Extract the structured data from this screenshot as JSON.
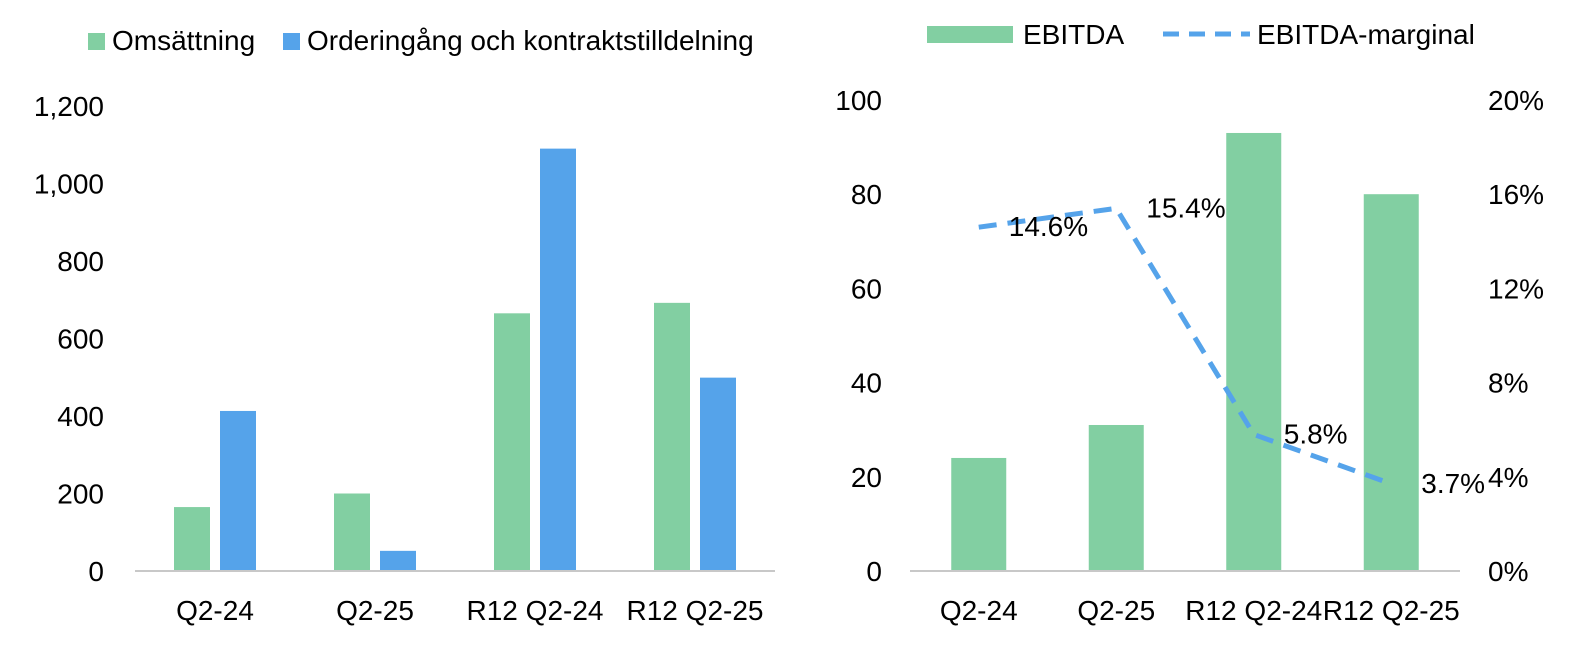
{
  "chart_data": [
    {
      "type": "bar",
      "title": "",
      "categories": [
        "Q2-24",
        "Q2-25",
        "R12 Q2-24",
        "R12 Q2-25"
      ],
      "series": [
        {
          "name": "Omsättning",
          "color": "#82CFA2",
          "values": [
            165,
            200,
            665,
            692
          ]
        },
        {
          "name": "Orderingång och kontraktstilldelning",
          "color": "#55A3EA",
          "values": [
            413,
            52,
            1090,
            499
          ]
        }
      ],
      "y_ticks": [
        "0",
        "200",
        "400",
        "600",
        "800",
        "1,000",
        "1,200"
      ],
      "ylim": [
        0,
        1200
      ],
      "grid": false,
      "legend_position": "top-left"
    },
    {
      "type": "bar",
      "title": "",
      "categories": [
        "Q2-24",
        "Q2-25",
        "R12 Q2-24",
        "R12 Q2-25"
      ],
      "series": [
        {
          "name": "EBITDA",
          "color": "#82CFA2",
          "axis": "left",
          "values": [
            24,
            31,
            93,
            80
          ]
        },
        {
          "name": "EBITDA-marginal",
          "color": "#55A3EA",
          "axis": "right",
          "line_style": "dashed",
          "values": [
            14.6,
            15.4,
            5.8,
            3.7
          ],
          "data_labels": [
            "14.6%",
            "15.4%",
            "5.8%",
            "3.7%"
          ]
        }
      ],
      "y_ticks": [
        "0",
        "20",
        "40",
        "60",
        "80",
        "100"
      ],
      "ylim": [
        0,
        100
      ],
      "y2_ticks": [
        "0%",
        "4%",
        "8%",
        "12%",
        "16%",
        "20%"
      ],
      "y2lim": [
        0,
        20
      ],
      "grid": false,
      "legend_position": "top"
    }
  ]
}
